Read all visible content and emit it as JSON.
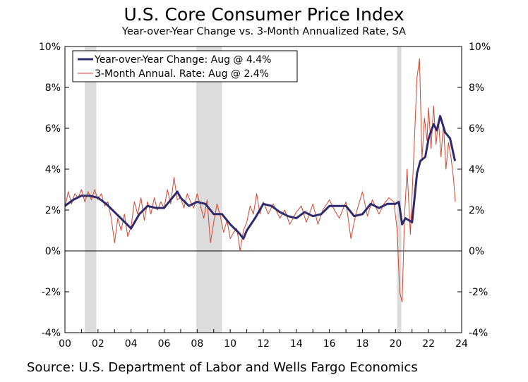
{
  "title": "U.S. Core Consumer Price Index",
  "subtitle": "Year-over-Year Change vs. 3-Month Annualized Rate, SA",
  "source": "Source: U.S. Department of Labor and Wells Fargo Economics",
  "chart_data": {
    "type": "line",
    "title": "U.S. Core Consumer Price Index",
    "subtitle": "Year-over-Year Change vs. 3-Month Annualized Rate, SA",
    "xlim": [
      2000,
      2024
    ],
    "ylim": [
      -4,
      10
    ],
    "x_tick_labels": [
      "00",
      "02",
      "04",
      "06",
      "08",
      "10",
      "12",
      "14",
      "16",
      "18",
      "20",
      "22",
      "24"
    ],
    "y_tick_labels": [
      "-4%",
      "-2%",
      "0%",
      "2%",
      "4%",
      "6%",
      "8%",
      "10%"
    ],
    "y_ticks": [
      -4,
      -2,
      0,
      2,
      4,
      6,
      8,
      10
    ],
    "grid": false,
    "legend_position": "top-left",
    "recessions": [
      [
        2001.2,
        2001.9
      ],
      [
        2007.95,
        2009.5
      ],
      [
        2020.1,
        2020.35
      ]
    ],
    "series": [
      {
        "name": "Year-over-Year Change: Aug @ 4.4%",
        "color": "#2e2a6b",
        "x": [
          2000.0,
          2000.5,
          2001.0,
          2001.5,
          2002.0,
          2002.5,
          2003.0,
          2003.5,
          2004.0,
          2004.5,
          2005.0,
          2005.5,
          2006.0,
          2006.5,
          2006.8,
          2007.0,
          2007.5,
          2008.0,
          2008.5,
          2009.0,
          2009.5,
          2010.0,
          2010.5,
          2010.8,
          2011.0,
          2011.5,
          2012.0,
          2012.5,
          2013.0,
          2013.5,
          2014.0,
          2014.5,
          2015.0,
          2015.5,
          2016.0,
          2016.5,
          2017.0,
          2017.5,
          2018.0,
          2018.5,
          2019.0,
          2019.5,
          2020.0,
          2020.2,
          2020.4,
          2020.6,
          2021.0,
          2021.3,
          2021.5,
          2021.8,
          2022.0,
          2022.3,
          2022.5,
          2022.7,
          2023.0,
          2023.3,
          2023.6
        ],
        "values": [
          2.2,
          2.5,
          2.7,
          2.7,
          2.6,
          2.3,
          1.9,
          1.5,
          1.1,
          1.8,
          2.2,
          2.1,
          2.1,
          2.6,
          2.9,
          2.6,
          2.2,
          2.4,
          2.3,
          1.8,
          1.8,
          1.3,
          0.9,
          0.6,
          1.0,
          1.6,
          2.3,
          2.2,
          1.9,
          1.7,
          1.6,
          1.9,
          1.7,
          1.8,
          2.2,
          2.2,
          2.2,
          1.7,
          1.8,
          2.3,
          2.1,
          2.3,
          2.3,
          2.4,
          1.3,
          1.6,
          1.4,
          3.8,
          4.4,
          4.6,
          5.5,
          6.2,
          5.9,
          6.6,
          5.8,
          5.5,
          4.4
        ]
      },
      {
        "name": "3-Month Annual. Rate: Aug @ 2.4%",
        "color": "#d8432c",
        "x": [
          2000.0,
          2000.2,
          2000.4,
          2000.6,
          2000.8,
          2001.0,
          2001.2,
          2001.4,
          2001.6,
          2001.8,
          2002.0,
          2002.2,
          2002.4,
          2002.6,
          2002.8,
          2003.0,
          2003.2,
          2003.4,
          2003.6,
          2003.8,
          2004.0,
          2004.2,
          2004.4,
          2004.6,
          2004.8,
          2005.0,
          2005.2,
          2005.4,
          2005.6,
          2005.8,
          2006.0,
          2006.2,
          2006.4,
          2006.6,
          2006.8,
          2007.0,
          2007.2,
          2007.4,
          2007.6,
          2007.8,
          2008.0,
          2008.2,
          2008.4,
          2008.6,
          2008.8,
          2009.0,
          2009.2,
          2009.4,
          2009.6,
          2009.8,
          2010.0,
          2010.2,
          2010.4,
          2010.6,
          2010.8,
          2011.0,
          2011.2,
          2011.4,
          2011.6,
          2011.8,
          2012.0,
          2012.3,
          2012.6,
          2013.0,
          2013.3,
          2013.6,
          2014.0,
          2014.3,
          2014.6,
          2015.0,
          2015.3,
          2015.6,
          2016.0,
          2016.3,
          2016.6,
          2017.0,
          2017.3,
          2017.6,
          2018.0,
          2018.3,
          2018.6,
          2019.0,
          2019.3,
          2019.6,
          2019.9,
          2020.1,
          2020.25,
          2020.4,
          2020.55,
          2020.7,
          2020.9,
          2021.1,
          2021.3,
          2021.45,
          2021.6,
          2021.75,
          2021.9,
          2022.0,
          2022.15,
          2022.3,
          2022.45,
          2022.6,
          2022.75,
          2022.9,
          2023.05,
          2023.2,
          2023.35,
          2023.5,
          2023.62
        ],
        "values": [
          2.1,
          2.9,
          2.3,
          2.8,
          2.6,
          3.0,
          2.4,
          2.9,
          2.5,
          3.0,
          2.5,
          2.8,
          2.2,
          2.4,
          1.6,
          0.4,
          1.6,
          1.0,
          1.8,
          0.7,
          1.2,
          2.4,
          1.8,
          2.6,
          1.5,
          2.4,
          1.8,
          2.6,
          2.0,
          2.4,
          2.1,
          3.0,
          2.3,
          3.6,
          2.5,
          2.6,
          2.1,
          2.8,
          2.4,
          2.1,
          2.8,
          2.2,
          1.6,
          2.5,
          0.4,
          1.4,
          2.3,
          1.7,
          0.9,
          1.5,
          0.6,
          0.9,
          1.1,
          0.0,
          1.0,
          1.4,
          2.2,
          1.8,
          2.8,
          1.8,
          2.4,
          1.8,
          2.3,
          1.6,
          2.0,
          1.3,
          1.9,
          2.2,
          1.4,
          2.3,
          1.3,
          2.0,
          2.5,
          2.0,
          1.6,
          2.4,
          0.6,
          1.8,
          2.9,
          1.7,
          2.5,
          1.8,
          2.3,
          2.6,
          2.4,
          1.0,
          -2.0,
          -2.5,
          1.8,
          4.0,
          0.8,
          4.6,
          8.5,
          9.4,
          4.5,
          6.5,
          5.4,
          7.0,
          5.0,
          7.1,
          5.2,
          6.4,
          4.6,
          6.2,
          4.0,
          5.3,
          4.6,
          3.6,
          2.4
        ]
      }
    ]
  }
}
